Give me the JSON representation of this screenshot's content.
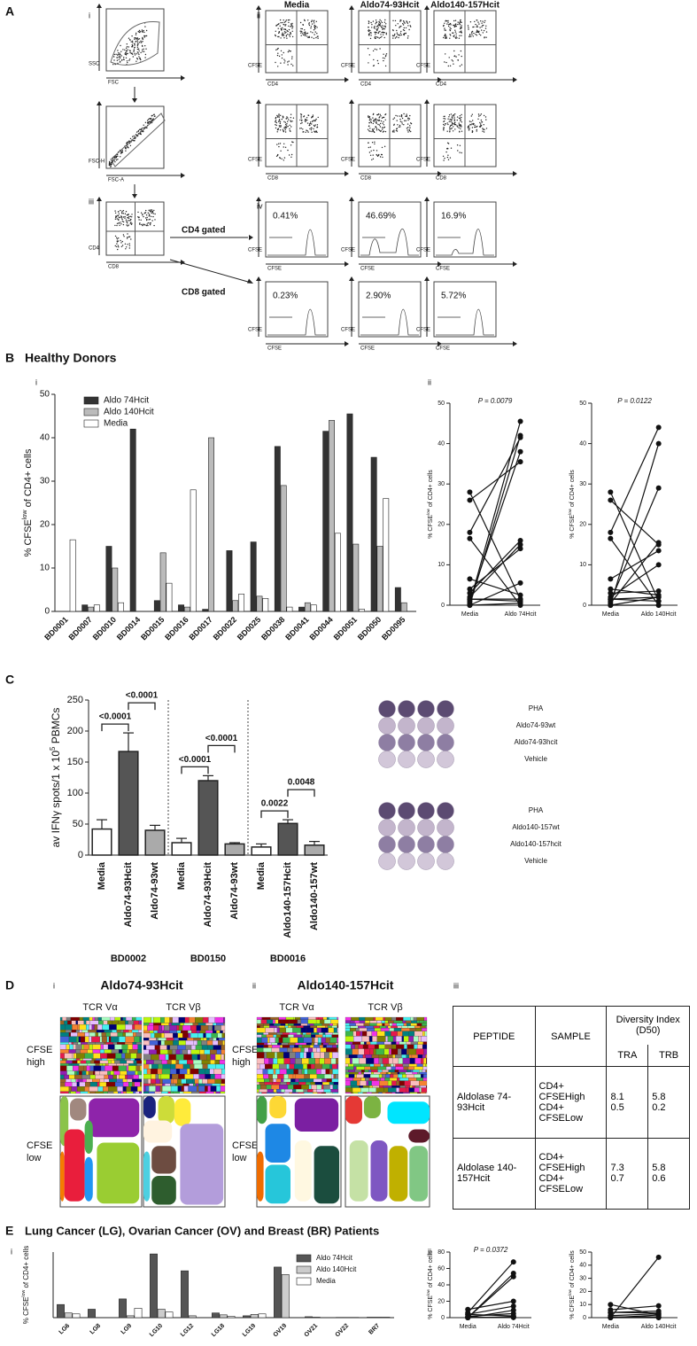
{
  "panel_labels": [
    "A",
    "B",
    "C",
    "D",
    "E"
  ],
  "panel_a": {
    "numerals": [
      "i",
      "ii",
      "iii",
      "iv"
    ],
    "columns": [
      "Media",
      "Aldo74-93Hcit",
      "Aldo140-157Hcit"
    ],
    "axes": {
      "ssc": "SSC",
      "fsc": "FSC",
      "fsch": "FSC-H",
      "fsca": "FSC-A",
      "cd4": "CD4",
      "cd8": "CD8",
      "cfse": "CFSE"
    },
    "gates": [
      "CD4 gated",
      "CD8 gated"
    ],
    "cd4_percent": [
      "0.41%",
      "46.69%",
      "16.9%"
    ],
    "cd8_percent": [
      "0.23%",
      "2.90%",
      "5.72%"
    ]
  },
  "section_b": {
    "title": "Healthy Donors",
    "numerals": [
      "i",
      "ii"
    ]
  },
  "section_d": {
    "numerals": [
      "i",
      "ii",
      "iii"
    ],
    "titles": [
      "Aldo74-93Hcit",
      "Aldo140-157Hcit"
    ],
    "tcr": [
      "TCR Vα",
      "TCR Vβ"
    ],
    "cfse_high": [
      "CFSE",
      "high"
    ],
    "cfse_low": [
      "CFSE",
      "low"
    ]
  },
  "section_e": {
    "title": "Lung Cancer (LG), Ovarian Cancer (OV)  and Breast (BR) Patients",
    "numerals": [
      "i",
      "ii"
    ]
  },
  "wells": {
    "set1": [
      "PHA",
      "Aldo74-93wt",
      "Aldo74-93hcit",
      "Vehicle"
    ],
    "set2": [
      "PHA",
      "Aldo140-157wt",
      "Aldo140-157hcit",
      "Vehicle"
    ]
  },
  "table": {
    "header": [
      "PEPTIDE",
      "SAMPLE",
      "Diversity Index (D50)"
    ],
    "subheader": [
      "TRA",
      "TRB"
    ],
    "rows": [
      {
        "peptide": "Aldolase 74-93Hcit",
        "samples": [
          "CD4+ CFSEHigh",
          "CD4+ CFSELow"
        ],
        "tra": [
          8.1,
          0.5
        ],
        "trb": [
          5.8,
          0.2
        ]
      },
      {
        "peptide": "Aldolase 140-157Hcit",
        "samples": [
          "CD4+ CFSEHigh",
          "CD4+ CFSELow"
        ],
        "tra": [
          7.3,
          0.7
        ],
        "trb": [
          5.8,
          0.6
        ]
      }
    ]
  },
  "chart_data": [
    {
      "type": "bar",
      "ylabel": [
        "% CFSE",
        "low",
        " of CD4+ cells"
      ],
      "categories": [
        "BD0001",
        "BD0007",
        "BD0010",
        "BD0014",
        "BD0015",
        "BD0016",
        "BD0017",
        "BD0022",
        "BD0025",
        "BD0038",
        "BD0041",
        "BD0044",
        "BD0051",
        "BD0050",
        "BD0095"
      ],
      "series": [
        {
          "name": "Aldo 74Hcit",
          "color": "#333333",
          "values": [
            0,
            1.5,
            15,
            42,
            2.5,
            1.5,
            0.5,
            14,
            16,
            38,
            1,
            41.5,
            45.5,
            35.5,
            5.5
          ]
        },
        {
          "name": "Aldo 140Hcit",
          "color": "#bbbbbb",
          "values": [
            0,
            1,
            10,
            0,
            13.5,
            1,
            40,
            2.5,
            3.5,
            29,
            2,
            44,
            15.5,
            15,
            2
          ]
        },
        {
          "name": "Media",
          "color": "#ffffff",
          "values": [
            16.5,
            1.5,
            2,
            0,
            6.5,
            28,
            0,
            4,
            3,
            1,
            1.5,
            18,
            0.5,
            26,
            0
          ]
        }
      ],
      "ylim": [
        0,
        50
      ],
      "yticks": [
        0,
        10,
        20,
        30,
        40,
        50
      ],
      "legend": "top-left"
    },
    {
      "type": "paired",
      "ylabel": [
        "% CFSE",
        "low",
        " of CD4+ cells"
      ],
      "categories": [
        "Media",
        "Aldo 74Hcit"
      ],
      "before": [
        16.5,
        1.5,
        2,
        0,
        6.5,
        28,
        0,
        4,
        3,
        1,
        1.5,
        18,
        0.5,
        26,
        0
      ],
      "after": [
        0,
        1.5,
        15,
        42,
        2.5,
        1.5,
        0.5,
        14,
        16,
        38,
        1,
        41.5,
        45.5,
        35.5,
        5.5
      ],
      "annotation": "P = 0.0079",
      "ylim": [
        0,
        50
      ],
      "yticks": [
        0,
        10,
        20,
        30,
        40,
        50
      ]
    },
    {
      "type": "paired",
      "ylabel": [
        "% CFSE",
        "low",
        " of CD4+ cells"
      ],
      "categories": [
        "Media",
        "Aldo 140Hcit"
      ],
      "before": [
        16.5,
        1.5,
        2,
        0,
        6.5,
        28,
        0,
        4,
        3,
        1,
        1.5,
        18,
        0.5,
        26,
        0
      ],
      "after": [
        0,
        1,
        10,
        0,
        13.5,
        1,
        40,
        2.5,
        3.5,
        29,
        2,
        44,
        15.5,
        15,
        2
      ],
      "annotation": "P = 0.0122",
      "ylim": [
        0,
        50
      ],
      "yticks": [
        0,
        10,
        20,
        30,
        40,
        50
      ]
    },
    {
      "type": "errorbar",
      "ylabel": [
        "av IFNγ spots/1 x 10",
        "5",
        " PBMCs"
      ],
      "categories": [
        "Media",
        "Aldo74-93Hcit",
        "Aldo74-93wt",
        "Media",
        "Aldo74-93Hcit",
        "Aldo74-93wt",
        "Media",
        "Aldo140-157Hcit",
        "Aldo140-157wt"
      ],
      "values": [
        42,
        167,
        40,
        20,
        120,
        18,
        13,
        51,
        16
      ],
      "errors": [
        15,
        30,
        8,
        7,
        8,
        2,
        5,
        6,
        6
      ],
      "colors": [
        "#ffffff",
        "#555555",
        "#aaaaaa",
        "#ffffff",
        "#555555",
        "#aaaaaa",
        "#ffffff",
        "#555555",
        "#aaaaaa"
      ],
      "groups": [
        "BD0002",
        "BD0150",
        "BD0016"
      ],
      "comparisons": [
        {
          "between": [
            0,
            1
          ],
          "label": "<0.0001"
        },
        {
          "between": [
            1,
            2
          ],
          "label": "<0.0001"
        },
        {
          "between": [
            3,
            4
          ],
          "label": "<0.0001"
        },
        {
          "between": [
            4,
            5
          ],
          "label": "<0.0001"
        },
        {
          "between": [
            6,
            7
          ],
          "label": "0.0022"
        },
        {
          "between": [
            7,
            8
          ],
          "label": "0.0048"
        }
      ],
      "ylim": [
        0,
        250
      ],
      "yticks": [
        0,
        50,
        100,
        150,
        200,
        250
      ]
    },
    {
      "type": "bar",
      "ylabel": [
        "% CFSE",
        "low",
        " of CD4+ cells"
      ],
      "categories": [
        "LG6",
        "LG8",
        "LG9",
        "LG10",
        "LG12",
        "LG18",
        "LG19",
        "OV19",
        "OV21",
        "OV22",
        "BR7"
      ],
      "series": [
        {
          "name": "Aldo 74Hcit",
          "color": "#555555",
          "values": [
            14,
            9,
            20,
            68,
            50,
            5,
            2,
            54,
            1,
            0.3,
            0.5
          ]
        },
        {
          "name": "Aldo 140Hcit",
          "color": "#cccccc",
          "values": [
            5,
            0,
            2,
            9,
            2,
            3,
            3.5,
            46,
            0.5,
            0.3,
            0.5
          ]
        },
        {
          "name": "Media",
          "color": "#ffffff",
          "values": [
            4,
            0,
            10,
            6,
            0,
            1.5,
            4,
            0,
            0,
            0.3,
            0.5
          ]
        }
      ],
      "ylim": [
        0,
        70
      ],
      "legend": "top-right"
    },
    {
      "type": "paired",
      "ylabel": [
        "% CFSE",
        "low",
        " of CD4+ cells"
      ],
      "categories": [
        "Media",
        "Aldo 74Hcit"
      ],
      "before": [
        4,
        0,
        10,
        6,
        0,
        1.5,
        4,
        0,
        0,
        0.3,
        0.5
      ],
      "after": [
        14,
        9,
        20,
        68,
        50,
        5,
        2,
        54,
        1,
        0.3,
        0.5
      ],
      "annotation": "P = 0.0372",
      "ylim": [
        0,
        80
      ],
      "yticks": [
        0,
        20,
        40,
        60,
        80
      ]
    },
    {
      "type": "paired",
      "ylabel": [
        "% CFSE",
        "low",
        " of CD4+ cells"
      ],
      "categories": [
        "Media",
        "Aldo 140Hcit"
      ],
      "before": [
        4,
        0,
        10,
        6,
        0,
        1.5,
        4,
        0,
        0,
        0.3,
        0.5
      ],
      "after": [
        5,
        0,
        2,
        9,
        2,
        3,
        3.5,
        46,
        0.5,
        0.3,
        0.5
      ],
      "ylim": [
        0,
        50
      ],
      "yticks": [
        0,
        10,
        20,
        30,
        40,
        50
      ]
    }
  ]
}
